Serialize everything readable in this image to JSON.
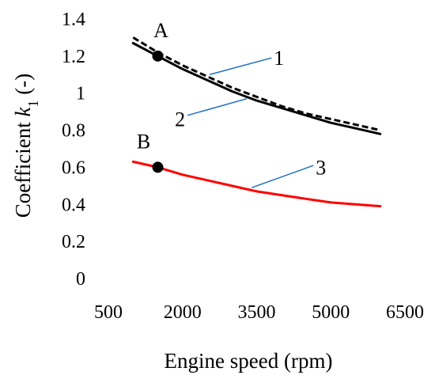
{
  "chart_data": {
    "type": "line",
    "xlabel": "Engine speed (rpm)",
    "ylabel_prefix": "Coefficient ",
    "ylabel_var": "k",
    "ylabel_sub": "1",
    "ylabel_suffix": " (-)",
    "xlim": [
      500,
      6500
    ],
    "ylim": [
      0,
      1.4
    ],
    "x_ticks": [
      {
        "value": 500,
        "label": "500"
      },
      {
        "value": 2000,
        "label": "2000"
      },
      {
        "value": 3500,
        "label": "3500"
      },
      {
        "value": 5000,
        "label": "5000"
      },
      {
        "value": 6500,
        "label": "6500"
      }
    ],
    "y_ticks": [
      {
        "value": 0,
        "label": "0"
      },
      {
        "value": 0.2,
        "label": "0.2"
      },
      {
        "value": 0.4,
        "label": "0.4"
      },
      {
        "value": 0.6,
        "label": "0.6"
      },
      {
        "value": 0.8,
        "label": "0.8"
      },
      {
        "value": 1.0,
        "label": "1"
      },
      {
        "value": 1.2,
        "label": "1.2"
      },
      {
        "value": 1.4,
        "label": "1.4"
      }
    ],
    "grid": false,
    "series": [
      {
        "name": "1",
        "color": "#000000",
        "style": "dashed",
        "x": [
          1000,
          1500,
          2000,
          2500,
          3000,
          3500,
          4000,
          4500,
          5000,
          5500,
          6000
        ],
        "y": [
          1.3,
          1.22,
          1.15,
          1.09,
          1.03,
          0.98,
          0.93,
          0.89,
          0.86,
          0.83,
          0.8
        ]
      },
      {
        "name": "2",
        "color": "#000000",
        "style": "solid",
        "x": [
          1000,
          1500,
          2000,
          2500,
          3000,
          3500,
          4000,
          4500,
          5000,
          5500,
          6000
        ],
        "y": [
          1.27,
          1.2,
          1.13,
          1.07,
          1.01,
          0.96,
          0.92,
          0.88,
          0.84,
          0.81,
          0.78
        ]
      },
      {
        "name": "3",
        "color": "#ff0000",
        "style": "solid",
        "x": [
          1000,
          1500,
          2000,
          2500,
          3000,
          3500,
          4000,
          4500,
          5000,
          5500,
          6000
        ],
        "y": [
          0.63,
          0.6,
          0.56,
          0.53,
          0.5,
          0.47,
          0.45,
          0.43,
          0.41,
          0.4,
          0.39
        ]
      }
    ],
    "points": [
      {
        "label": "A",
        "x": 1500,
        "y": 1.2
      },
      {
        "label": "B",
        "x": 1500,
        "y": 0.6
      }
    ],
    "leaders": [
      {
        "label": "1",
        "from": [
          2550,
          1.1
        ],
        "to": [
          3800,
          1.19
        ],
        "label_at": [
          3950,
          1.19
        ]
      },
      {
        "label": "2",
        "from": [
          3300,
          0.97
        ],
        "to": [
          2100,
          0.88
        ],
        "label_at": [
          1950,
          0.86
        ]
      },
      {
        "label": "3",
        "from": [
          3400,
          0.49
        ],
        "to": [
          4650,
          0.61
        ],
        "label_at": [
          4800,
          0.6
        ]
      }
    ],
    "leader_color": "#1f6fbf"
  }
}
